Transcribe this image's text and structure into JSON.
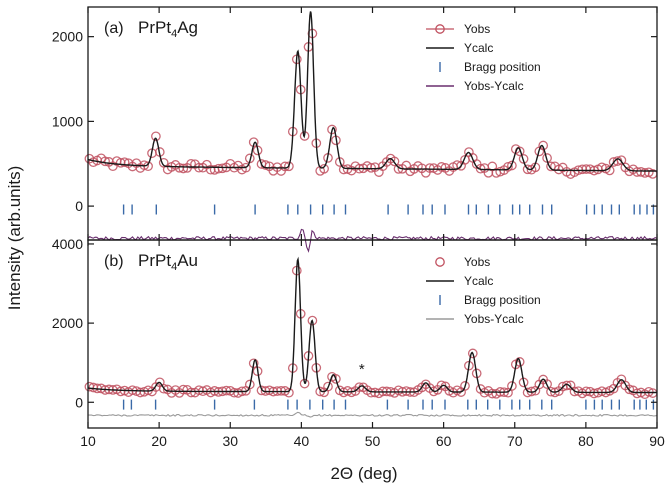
{
  "chart_data": [
    {
      "type": "line",
      "panel_label": "(a)",
      "compound": {
        "main": "PrPt",
        "sub": "4",
        "tail": "Ag"
      },
      "xlabel": "2Θ (deg)",
      "ylabel": "Intensity (arb.units)",
      "xlim": [
        10,
        90
      ],
      "ylim": [
        -400,
        2350
      ],
      "yticks": [
        0,
        1000,
        2000
      ],
      "xticks": [
        10,
        20,
        30,
        40,
        50,
        60,
        70,
        80,
        90
      ],
      "grid": false,
      "legend_position": "top-right",
      "background": 470,
      "peaks": [
        {
          "x": 19.5,
          "h": 330,
          "w": 0.45
        },
        {
          "x": 33.5,
          "h": 300,
          "w": 0.45
        },
        {
          "x": 39.5,
          "h": 1380,
          "w": 0.45
        },
        {
          "x": 41.3,
          "h": 1850,
          "w": 0.42
        },
        {
          "x": 44.5,
          "h": 480,
          "w": 0.5
        },
        {
          "x": 52.5,
          "h": 120,
          "w": 0.6
        },
        {
          "x": 63.5,
          "h": 200,
          "w": 0.6
        },
        {
          "x": 70.5,
          "h": 260,
          "w": 0.55
        },
        {
          "x": 73.8,
          "h": 290,
          "w": 0.55
        },
        {
          "x": 84.5,
          "h": 140,
          "w": 0.7
        }
      ],
      "bragg_positions": [
        15.0,
        16.2,
        19.6,
        27.8,
        33.5,
        38.1,
        39.5,
        41.3,
        43.0,
        44.6,
        46.2,
        52.2,
        55.0,
        57.1,
        58.4,
        60.2,
        63.5,
        64.6,
        66.3,
        67.9,
        69.7,
        70.7,
        72.1,
        73.9,
        75.2,
        80.1,
        81.2,
        82.3,
        83.6,
        84.7,
        86.8,
        87.6,
        88.6,
        89.5
      ],
      "bragg_y": -40,
      "difference_offset": -380,
      "difference_spikes": [
        {
          "x": 40.1,
          "h": 120
        },
        {
          "x": 41.0,
          "h": -150
        },
        {
          "x": 41.6,
          "h": 100
        }
      ],
      "legend": [
        {
          "label": "Yobs",
          "style": "circle-line",
          "color": "#c0505f"
        },
        {
          "label": "Ycalc",
          "style": "line",
          "color": "#1a1a1a"
        },
        {
          "label": "Bragg position",
          "style": "tick",
          "color": "#3a6aa8"
        },
        {
          "label": "Yobs-Ycalc",
          "style": "line",
          "color": "#6a2f6e"
        }
      ]
    },
    {
      "type": "line",
      "panel_label": "(b)",
      "compound": {
        "main": "PrPt",
        "sub": "4",
        "tail": "Au"
      },
      "xlabel": "2Θ (deg)",
      "ylabel": "Intensity (arb.units)",
      "xlim": [
        10,
        90
      ],
      "ylim": [
        -650,
        4100
      ],
      "yticks": [
        0,
        2000,
        4000
      ],
      "xticks": [
        10,
        20,
        30,
        40,
        50,
        60,
        70,
        80,
        90
      ],
      "grid": false,
      "legend_position": "top-right",
      "background": 280,
      "peaks": [
        {
          "x": 20.0,
          "h": 220,
          "w": 0.45
        },
        {
          "x": 33.5,
          "h": 800,
          "w": 0.4
        },
        {
          "x": 39.5,
          "h": 3350,
          "w": 0.38
        },
        {
          "x": 41.5,
          "h": 1800,
          "w": 0.42
        },
        {
          "x": 44.5,
          "h": 430,
          "w": 0.45
        },
        {
          "x": 48.5,
          "h": 150,
          "w": 0.5
        },
        {
          "x": 57.5,
          "h": 230,
          "w": 0.5
        },
        {
          "x": 60.0,
          "h": 170,
          "w": 0.5
        },
        {
          "x": 64.0,
          "h": 1000,
          "w": 0.5
        },
        {
          "x": 70.5,
          "h": 850,
          "w": 0.5
        },
        {
          "x": 74.0,
          "h": 330,
          "w": 0.5
        },
        {
          "x": 77.3,
          "h": 200,
          "w": 0.6
        },
        {
          "x": 85.0,
          "h": 320,
          "w": 0.6
        }
      ],
      "bragg_positions": [
        15.0,
        16.1,
        19.5,
        27.8,
        33.4,
        38.1,
        39.4,
        41.2,
        43.0,
        44.6,
        46.2,
        52.1,
        55.0,
        57.1,
        58.4,
        60.2,
        63.4,
        64.6,
        66.2,
        67.9,
        69.6,
        70.7,
        72.1,
        73.8,
        75.2,
        80.0,
        81.2,
        82.3,
        83.6,
        84.7,
        86.8,
        87.6,
        88.5,
        89.5
      ],
      "bragg_y": -60,
      "difference_offset": -330,
      "difference_spikes": [
        {
          "x": 39.5,
          "h": 70
        },
        {
          "x": 41.3,
          "h": -60
        }
      ],
      "annotation": {
        "text": "*",
        "x": 48.5
      },
      "legend": [
        {
          "label": "Yobs",
          "style": "circle",
          "color": "#c0505f"
        },
        {
          "label": "Ycalc",
          "style": "line",
          "color": "#1a1a1a"
        },
        {
          "label": "Bragg position",
          "style": "tick",
          "color": "#3a6aa8"
        },
        {
          "label": "Yobs-Ycalc",
          "style": "line",
          "color": "#9a9a9a"
        }
      ]
    }
  ]
}
